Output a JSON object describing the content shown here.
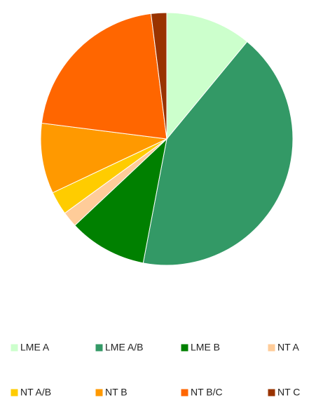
{
  "chart_data": {
    "type": "pie",
    "categories": [
      "LME A",
      "LME A/B",
      "LME B",
      "NT A",
      "NT A/B",
      "NT B",
      "NT B/C",
      "NT C"
    ],
    "values": [
      11,
      42,
      10,
      2,
      3,
      9,
      21,
      2
    ],
    "colors": [
      "#ccffcc",
      "#339966",
      "#008000",
      "#ffcc99",
      "#ffcc00",
      "#ff9900",
      "#ff6600",
      "#993300"
    ],
    "legend": "bottom"
  }
}
